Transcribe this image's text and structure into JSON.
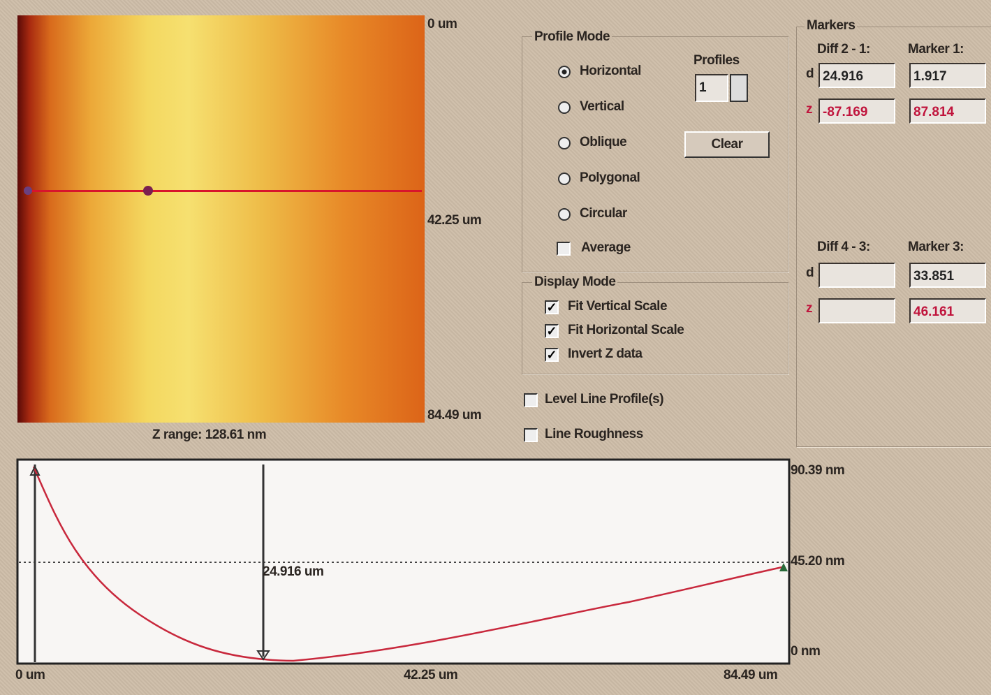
{
  "image": {
    "top_label": "0 um",
    "mid_label": "42.25 um",
    "bottom_label": "84.49 um",
    "z_range": "Z range: 128.61 nm"
  },
  "profile_mode": {
    "title": "Profile Mode",
    "options": [
      "Horizontal",
      "Vertical",
      "Oblique",
      "Polygonal",
      "Circular"
    ],
    "selected_index": 0,
    "average": "Average",
    "profiles_label": "Profiles",
    "profiles_value": "1",
    "clear": "Clear"
  },
  "display_mode": {
    "title": "Display Mode",
    "options": [
      "Fit Vertical Scale",
      "Fit Horizontal Scale",
      "Invert Z data"
    ]
  },
  "level_line": "Level Line Profile(s)",
  "line_roughness": "Line Roughness",
  "markers": {
    "title": "Markers",
    "d_label": "d",
    "z_label": "z",
    "diff21": {
      "title": "Diff 2 - 1:",
      "d": "24.916",
      "z": "-87.169"
    },
    "marker1": {
      "title": "Marker 1:",
      "d": "1.917",
      "z": "87.814"
    },
    "diff43": {
      "title": "Diff 4 - 3:"
    },
    "marker3": {
      "title": "Marker 3:",
      "d": "33.851",
      "z": "46.161"
    }
  },
  "profile": {
    "y_labels": [
      "90.39 nm",
      "45.20 nm",
      "0 nm"
    ],
    "x_labels": [
      "0 um",
      "42.25 um",
      "84.49 um"
    ],
    "annotation": "24.916 um"
  }
}
